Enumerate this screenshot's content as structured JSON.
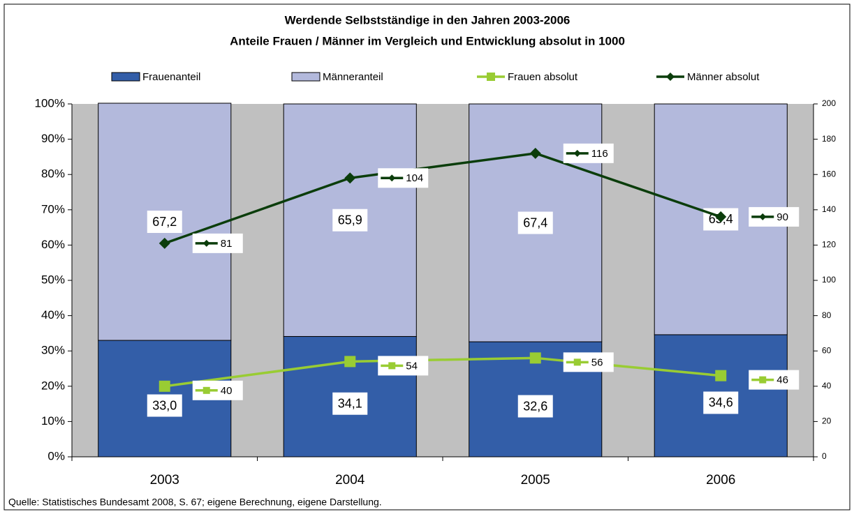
{
  "chart_data": {
    "type": "bar",
    "title": "Werdende Selbstständige in den Jahren 2003-2006",
    "subtitle": "Anteile Frauen / Männer im Vergleich und Entwicklung absolut in 1000",
    "categories": [
      "2003",
      "2004",
      "2005",
      "2006"
    ],
    "stacked": true,
    "series": [
      {
        "name": "Frauenanteil",
        "type": "bar",
        "color": "#335ea8",
        "values": [
          33.0,
          34.1,
          32.6,
          34.6
        ],
        "value_labels": [
          "33,0",
          "34,1",
          "32,6",
          "34,6"
        ]
      },
      {
        "name": "Männeranteil",
        "type": "bar",
        "color": "#b3b9dc",
        "values": [
          67.2,
          65.9,
          67.4,
          65.4
        ],
        "value_labels": [
          "67,2",
          "65,9",
          "67,4",
          "65,4"
        ]
      },
      {
        "name": "Frauen absolut",
        "type": "line",
        "axis": "y2",
        "marker": "square",
        "color": "#99cc33",
        "values": [
          40,
          54,
          56,
          46
        ]
      },
      {
        "name": "Männer absolut",
        "type": "line",
        "axis": "y2",
        "marker": "diamond",
        "color": "#0b3d0b",
        "values": [
          81,
          104,
          116,
          90
        ]
      }
    ],
    "ylim": [
      0,
      100
    ],
    "yticks": [
      {
        "value": 0,
        "label": "0%"
      },
      {
        "value": 10,
        "label": "10%"
      },
      {
        "value": 20,
        "label": "20%"
      },
      {
        "value": 30,
        "label": "30%"
      },
      {
        "value": 40,
        "label": "40%"
      },
      {
        "value": 50,
        "label": "50%"
      },
      {
        "value": 60,
        "label": "60%"
      },
      {
        "value": 70,
        "label": "70%"
      },
      {
        "value": 80,
        "label": "80%"
      },
      {
        "value": 90,
        "label": "90%"
      },
      {
        "value": 100,
        "label": "100%"
      }
    ],
    "y2lim": [
      0,
      200
    ],
    "y2ticks": [
      0,
      20,
      40,
      60,
      80,
      100,
      120,
      140,
      160,
      180,
      200
    ],
    "legend": "top",
    "note": "Quelle: Statistisches Bundesamt 2008, S. 67; eigene Berechnung, eigene Darstellung."
  }
}
